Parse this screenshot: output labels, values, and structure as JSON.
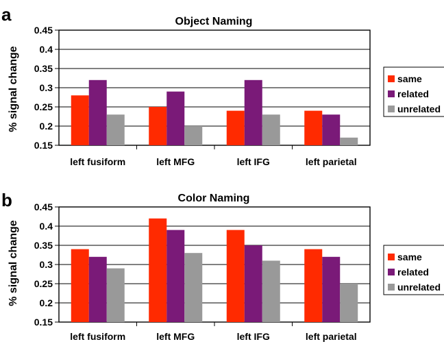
{
  "colors": {
    "same": "#ff2a00",
    "related": "#7a1a78",
    "unrelated": "#999999"
  },
  "chart_data": [
    {
      "type": "bar",
      "panel_label": "a",
      "title": "Object Naming",
      "ylabel": "% signal change",
      "xlabel": "",
      "ylim": [
        0.15,
        0.45
      ],
      "ytick_labels": [
        "0.15",
        "0.2",
        "0.25",
        "0.3",
        "0.35",
        "0.4",
        "0.45"
      ],
      "yticks": [
        0.15,
        0.2,
        0.25,
        0.3,
        0.35,
        0.4,
        0.45
      ],
      "grid": true,
      "legend_position": "right",
      "categories": [
        "left fusiform",
        "left MFG",
        "left IFG",
        "left parietal"
      ],
      "series": [
        {
          "name": "same",
          "values": [
            0.28,
            0.25,
            0.24,
            0.24
          ]
        },
        {
          "name": "related",
          "values": [
            0.32,
            0.29,
            0.32,
            0.23
          ]
        },
        {
          "name": "unrelated",
          "values": [
            0.23,
            0.2,
            0.23,
            0.17
          ]
        }
      ]
    },
    {
      "type": "bar",
      "panel_label": "b",
      "title": "Color Naming",
      "ylabel": "% signal change",
      "xlabel": "",
      "ylim": [
        0.15,
        0.45
      ],
      "ytick_labels": [
        "0.15",
        "0.2",
        "0.25",
        "0.3",
        "0.35",
        "0.4",
        "0.45"
      ],
      "yticks": [
        0.15,
        0.2,
        0.25,
        0.3,
        0.35,
        0.4,
        0.45
      ],
      "grid": true,
      "legend_position": "right",
      "categories": [
        "left fusiform",
        "left MFG",
        "left IFG",
        "left parietal"
      ],
      "series": [
        {
          "name": "same",
          "values": [
            0.34,
            0.42,
            0.39,
            0.34
          ]
        },
        {
          "name": "related",
          "values": [
            0.32,
            0.39,
            0.35,
            0.32
          ]
        },
        {
          "name": "unrelated",
          "values": [
            0.29,
            0.33,
            0.31,
            0.25
          ]
        }
      ]
    }
  ]
}
